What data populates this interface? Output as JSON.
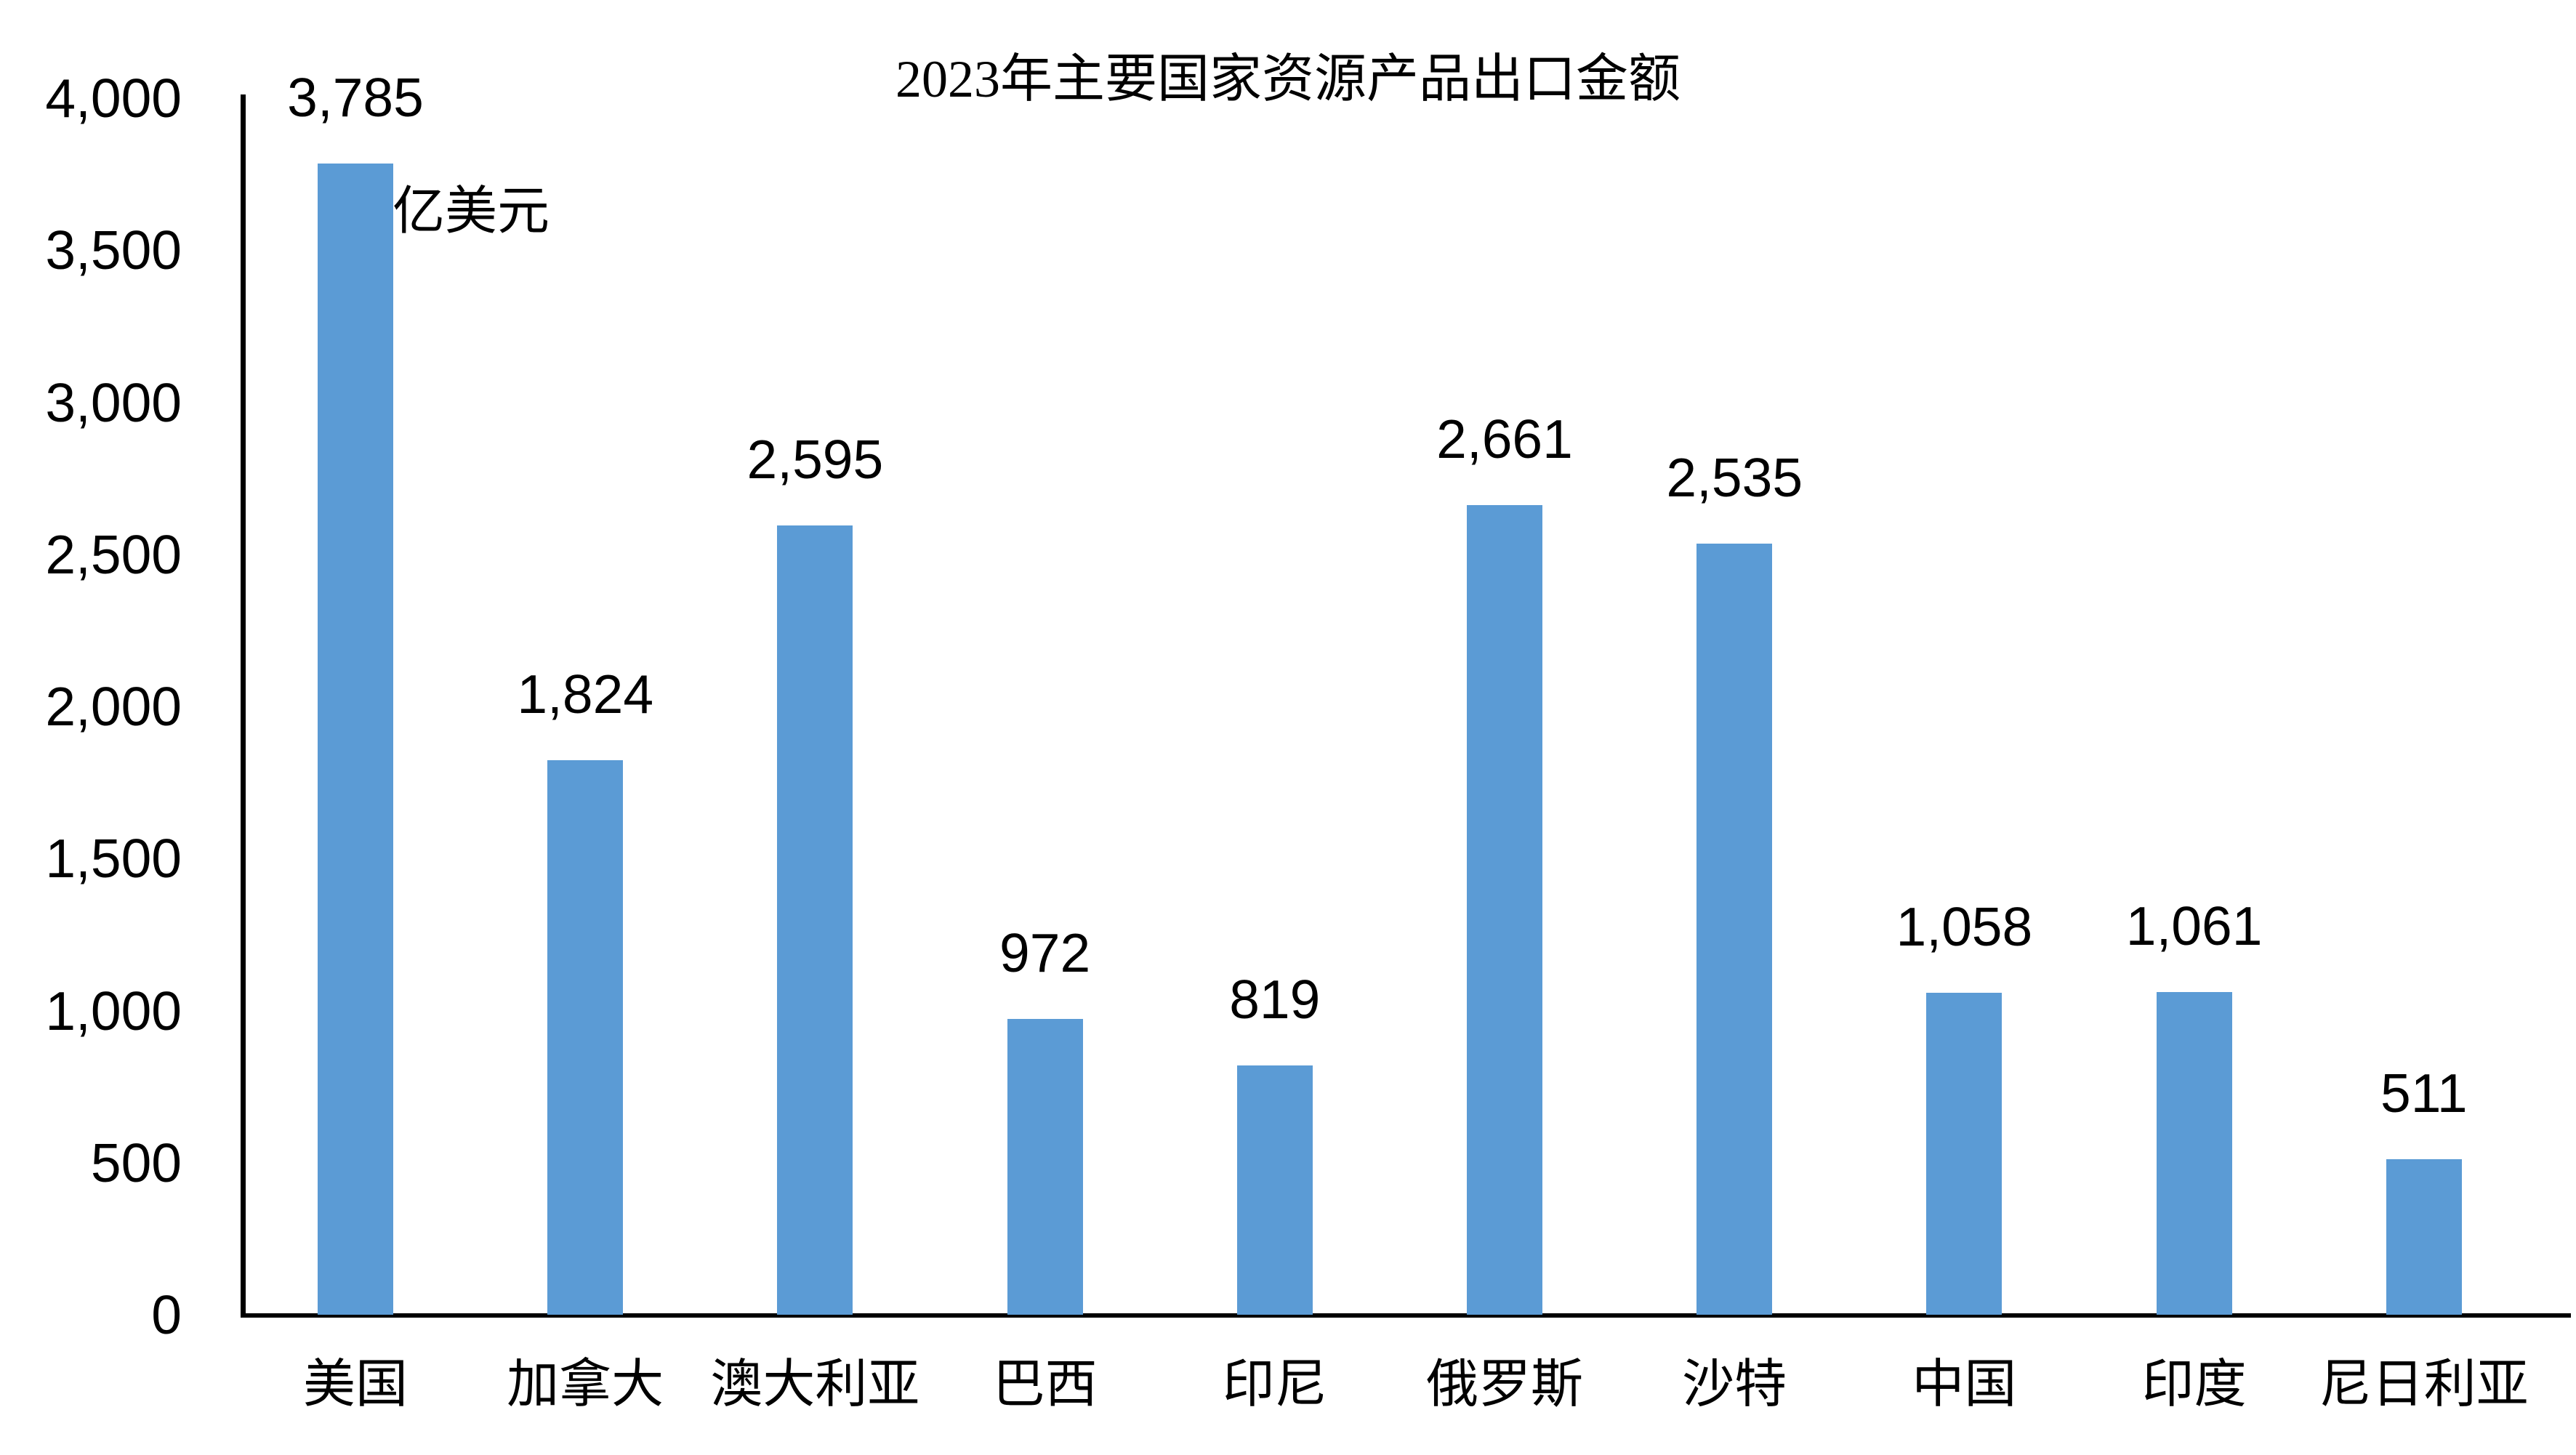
{
  "title": "2023年主要国家资源产品出口金额",
  "unit_label": "亿美元",
  "colors": {
    "bar": "#5B9BD5",
    "axis": "#000000",
    "text": "#000000",
    "background": "#FFFFFF"
  },
  "chart_data": {
    "type": "bar",
    "title": "2023年主要国家资源产品出口金额",
    "categories": [
      "美国",
      "加拿大",
      "澳大利亚",
      "巴西",
      "印尼",
      "俄罗斯",
      "沙特",
      "中国",
      "印度",
      "尼日利亚"
    ],
    "values": [
      3785,
      1824,
      2595,
      972,
      819,
      2661,
      2535,
      1058,
      1061,
      511
    ],
    "value_labels": [
      "3,785",
      "1,824",
      "2,595",
      "972",
      "819",
      "2,661",
      "2,535",
      "1,058",
      "1,061",
      "511"
    ],
    "xlabel": "",
    "ylabel": "亿美元",
    "ylim": [
      0,
      4000
    ],
    "ytick_interval": 500,
    "ytick_labels": [
      "0",
      "500",
      "1,000",
      "1,500",
      "2,000",
      "2,500",
      "3,000",
      "3,500",
      "4,000"
    ],
    "grid": false,
    "legend": null,
    "data_labels_shown": true,
    "bar_color": "#5B9BD5",
    "axis_color": "#000000"
  }
}
